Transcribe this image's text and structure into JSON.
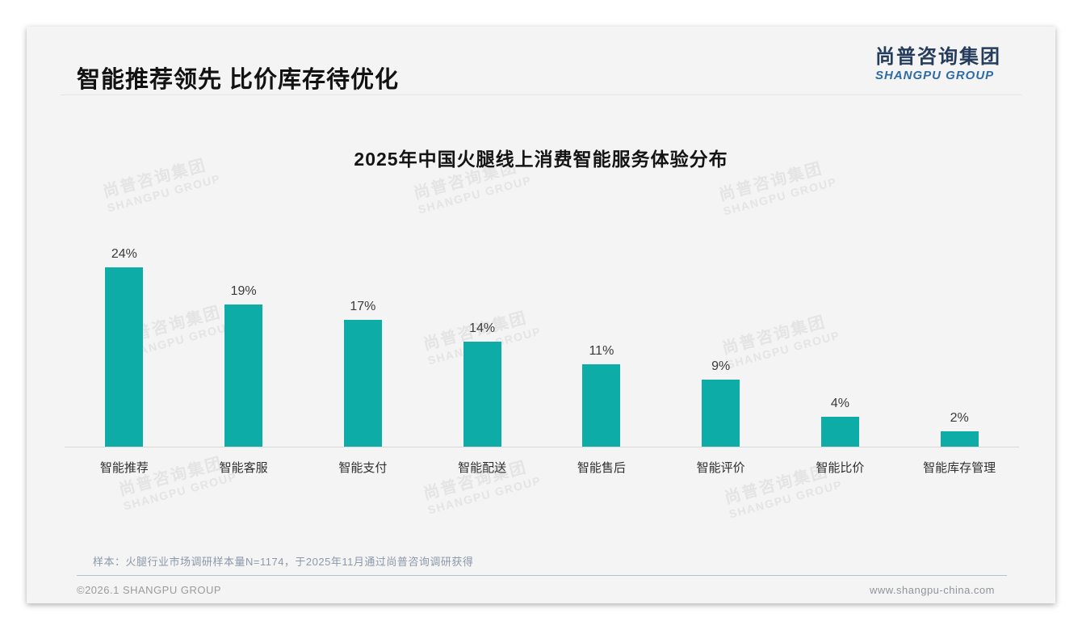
{
  "page": {
    "title": "智能推荐领先 比价库存待优化",
    "logo": {
      "cn": "尚普咨询集团",
      "en": "SHANGPU GROUP"
    },
    "watermark": {
      "line1": "尚普咨询集团",
      "line2": "SHANGPU GROUP"
    },
    "footer": {
      "note": "样本：火腿行业市场调研样本量N=1174，于2025年11月通过尚普咨询调研获得",
      "copyright": "©2026.1 SHANGPU GROUP",
      "website": "www.shangpu-china.com"
    }
  },
  "chart_data": {
    "type": "bar",
    "title": "2025年中国火腿线上消费智能服务体验分布",
    "categories": [
      "智能推荐",
      "智能客服",
      "智能支付",
      "智能配送",
      "智能售后",
      "智能评价",
      "智能比价",
      "智能库存管理"
    ],
    "values": [
      24,
      19,
      17,
      14,
      11,
      9,
      4,
      2
    ],
    "unit": "%",
    "value_labels": [
      "24%",
      "19%",
      "17%",
      "14%",
      "11%",
      "9%",
      "4%",
      "2%"
    ],
    "bar_color": "#0eaca6",
    "ylim": [
      0,
      24
    ],
    "grid": false,
    "legend": "none",
    "data_labels_position": "above-bar"
  }
}
